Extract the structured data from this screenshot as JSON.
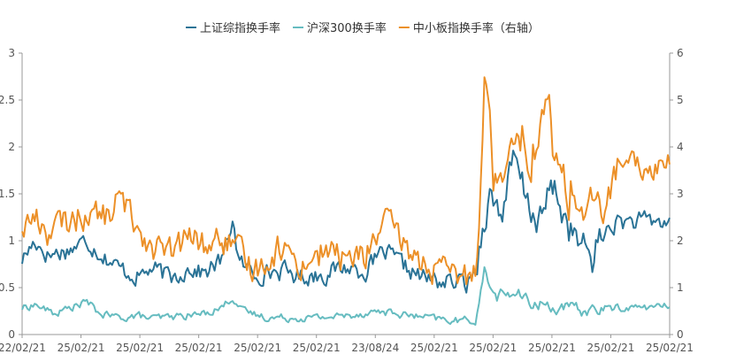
{
  "chart_data": {
    "type": "line",
    "legend_position": "top",
    "grid": false,
    "x_tick_labels": [
      "22/02/21",
      "25/02/21",
      "25/02/21",
      "25/02/21",
      "25/02/21",
      "25/02/21",
      "23/08/24",
      "25/02/21",
      "25/02/21",
      "25/02/21",
      "25/02/21",
      "25/02/21"
    ],
    "left_axis": {
      "ylim": [
        0,
        3
      ],
      "ticks": [
        "0",
        "0.5",
        "1",
        "1.5",
        "2",
        "2.5",
        "3"
      ]
    },
    "right_axis": {
      "ylim": [
        0,
        6
      ],
      "ticks": [
        "0",
        "1",
        "2",
        "3",
        "4",
        "5",
        "6"
      ]
    },
    "series": [
      {
        "name": "上证综指换手率",
        "color": "#2a7396",
        "axis": "left",
        "anchors": [
          [
            0,
            0.8
          ],
          [
            0.02,
            1.0
          ],
          [
            0.04,
            0.85
          ],
          [
            0.07,
            0.9
          ],
          [
            0.1,
            1.0
          ],
          [
            0.13,
            0.82
          ],
          [
            0.15,
            0.7
          ],
          [
            0.18,
            0.62
          ],
          [
            0.2,
            0.7
          ],
          [
            0.23,
            0.6
          ],
          [
            0.26,
            0.72
          ],
          [
            0.28,
            0.65
          ],
          [
            0.31,
            0.8
          ],
          [
            0.325,
            1.25
          ],
          [
            0.335,
            0.75
          ],
          [
            0.36,
            0.65
          ],
          [
            0.4,
            0.68
          ],
          [
            0.43,
            0.62
          ],
          [
            0.47,
            0.65
          ],
          [
            0.5,
            0.72
          ],
          [
            0.53,
            0.68
          ],
          [
            0.56,
            0.88
          ],
          [
            0.59,
            0.72
          ],
          [
            0.62,
            0.6
          ],
          [
            0.65,
            0.56
          ],
          [
            0.69,
            0.55
          ],
          [
            0.7,
            0.7
          ],
          [
            0.72,
            1.5
          ],
          [
            0.74,
            1.3
          ],
          [
            0.76,
            1.85
          ],
          [
            0.78,
            1.4
          ],
          [
            0.8,
            1.2
          ],
          [
            0.82,
            1.6
          ],
          [
            0.84,
            1.2
          ],
          [
            0.86,
            0.95
          ],
          [
            0.88,
            0.82
          ],
          [
            0.9,
            1.1
          ],
          [
            0.92,
            1.2
          ],
          [
            1.0,
            1.2
          ]
        ]
      },
      {
        "name": "沪深300换手率",
        "color": "#66bcc0",
        "axis": "left",
        "anchors": [
          [
            0,
            0.28
          ],
          [
            0.02,
            0.32
          ],
          [
            0.05,
            0.22
          ],
          [
            0.08,
            0.3
          ],
          [
            0.1,
            0.35
          ],
          [
            0.12,
            0.22
          ],
          [
            0.15,
            0.18
          ],
          [
            0.18,
            0.2
          ],
          [
            0.2,
            0.17
          ],
          [
            0.25,
            0.2
          ],
          [
            0.28,
            0.22
          ],
          [
            0.31,
            0.3
          ],
          [
            0.325,
            0.4
          ],
          [
            0.34,
            0.25
          ],
          [
            0.38,
            0.18
          ],
          [
            0.45,
            0.18
          ],
          [
            0.5,
            0.2
          ],
          [
            0.55,
            0.25
          ],
          [
            0.6,
            0.2
          ],
          [
            0.66,
            0.15
          ],
          [
            0.7,
            0.15
          ],
          [
            0.715,
            0.7
          ],
          [
            0.73,
            0.4
          ],
          [
            0.76,
            0.45
          ],
          [
            0.78,
            0.35
          ],
          [
            0.82,
            0.3
          ],
          [
            0.86,
            0.25
          ],
          [
            0.9,
            0.28
          ],
          [
            1.0,
            0.3
          ]
        ]
      },
      {
        "name": "中小板指换手率（右轴）",
        "color": "#ec9028",
        "axis": "right",
        "anchors": [
          [
            0,
            2.3
          ],
          [
            0.02,
            2.5
          ],
          [
            0.04,
            2.2
          ],
          [
            0.07,
            2.4
          ],
          [
            0.1,
            2.6
          ],
          [
            0.13,
            2.5
          ],
          [
            0.15,
            2.9
          ],
          [
            0.18,
            2.3
          ],
          [
            0.2,
            1.9
          ],
          [
            0.23,
            1.7
          ],
          [
            0.26,
            2.1
          ],
          [
            0.28,
            1.9
          ],
          [
            0.31,
            2.0
          ],
          [
            0.325,
            1.9
          ],
          [
            0.34,
            1.6
          ],
          [
            0.36,
            1.4
          ],
          [
            0.4,
            1.9
          ],
          [
            0.43,
            1.5
          ],
          [
            0.47,
            1.8
          ],
          [
            0.5,
            1.6
          ],
          [
            0.53,
            1.7
          ],
          [
            0.56,
            2.4
          ],
          [
            0.59,
            1.9
          ],
          [
            0.62,
            1.5
          ],
          [
            0.65,
            1.3
          ],
          [
            0.69,
            1.2
          ],
          [
            0.7,
            1.5
          ],
          [
            0.715,
            5.6
          ],
          [
            0.73,
            3.2
          ],
          [
            0.75,
            4.0
          ],
          [
            0.76,
            4.8
          ],
          [
            0.78,
            3.8
          ],
          [
            0.8,
            4.2
          ],
          [
            0.81,
            5.0
          ],
          [
            0.83,
            3.3
          ],
          [
            0.86,
            2.9
          ],
          [
            0.88,
            2.5
          ],
          [
            0.9,
            2.7
          ],
          [
            0.92,
            3.6
          ],
          [
            0.95,
            3.5
          ],
          [
            1.0,
            3.7
          ]
        ]
      }
    ]
  }
}
